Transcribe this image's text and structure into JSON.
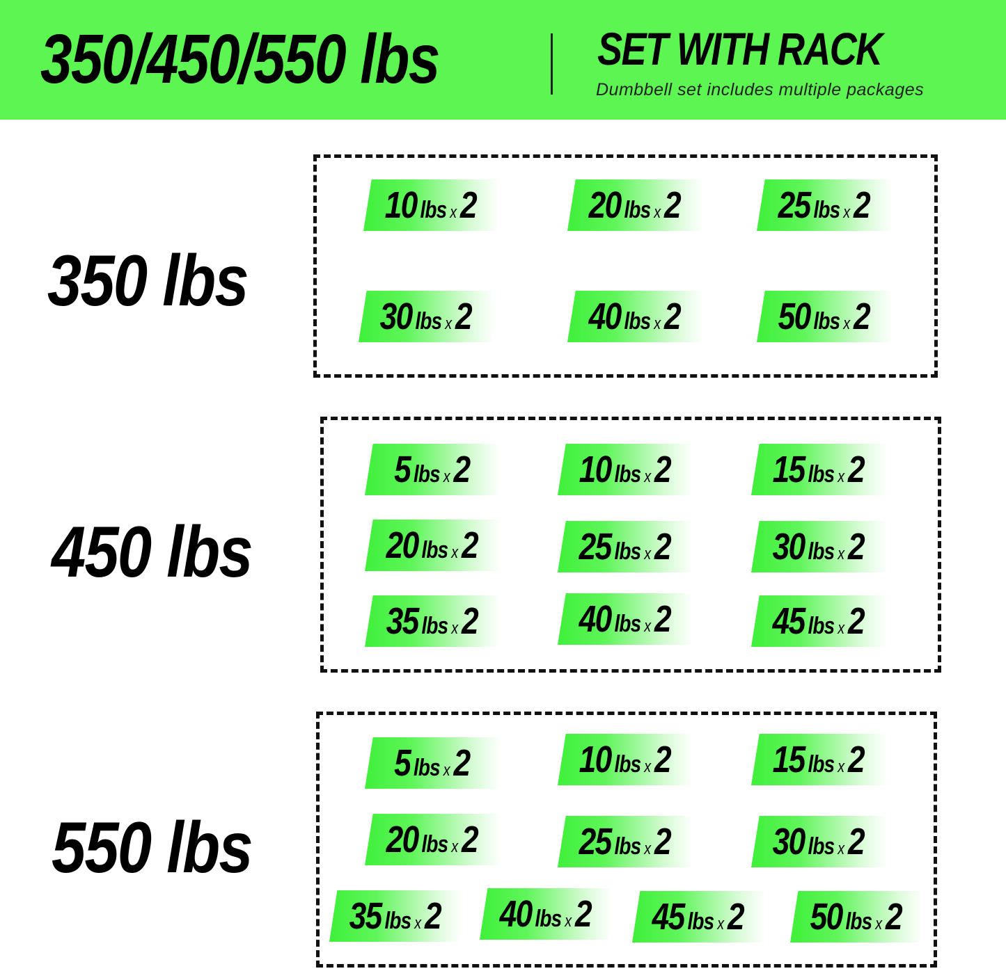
{
  "header": {
    "title": "350/450/550 lbs",
    "subtitle": "SET WITH RACK",
    "description": "Dumbbell set includes multiple packages",
    "background_color": "#5cf552"
  },
  "sets": [
    {
      "label": "350 lbs",
      "items": [
        {
          "weight": "10",
          "unit": "lbs",
          "times": "x",
          "count": "2"
        },
        {
          "weight": "20",
          "unit": "lbs",
          "times": "x",
          "count": "2"
        },
        {
          "weight": "25",
          "unit": "lbs",
          "times": "x",
          "count": "2"
        },
        {
          "weight": "30",
          "unit": "lbs",
          "times": "x",
          "count": "2"
        },
        {
          "weight": "40",
          "unit": "lbs",
          "times": "x",
          "count": "2"
        },
        {
          "weight": "50",
          "unit": "lbs",
          "times": "x",
          "count": "2"
        }
      ]
    },
    {
      "label": "450 lbs",
      "items": [
        {
          "weight": "5",
          "unit": "lbs",
          "times": "x",
          "count": "2"
        },
        {
          "weight": "10",
          "unit": "lbs",
          "times": "x",
          "count": "2"
        },
        {
          "weight": "15",
          "unit": "lbs",
          "times": "x",
          "count": "2"
        },
        {
          "weight": "20",
          "unit": "lbs",
          "times": "x",
          "count": "2"
        },
        {
          "weight": "25",
          "unit": "lbs",
          "times": "x",
          "count": "2"
        },
        {
          "weight": "30",
          "unit": "lbs",
          "times": "x",
          "count": "2"
        },
        {
          "weight": "35",
          "unit": "lbs",
          "times": "x",
          "count": "2"
        },
        {
          "weight": "40",
          "unit": "lbs",
          "times": "x",
          "count": "2"
        },
        {
          "weight": "45",
          "unit": "lbs",
          "times": "x",
          "count": "2"
        }
      ]
    },
    {
      "label": "550 lbs",
      "items": [
        {
          "weight": "5",
          "unit": "lbs",
          "times": "x",
          "count": "2"
        },
        {
          "weight": "10",
          "unit": "lbs",
          "times": "x",
          "count": "2"
        },
        {
          "weight": "15",
          "unit": "lbs",
          "times": "x",
          "count": "2"
        },
        {
          "weight": "20",
          "unit": "lbs",
          "times": "x",
          "count": "2"
        },
        {
          "weight": "25",
          "unit": "lbs",
          "times": "x",
          "count": "2"
        },
        {
          "weight": "30",
          "unit": "lbs",
          "times": "x",
          "count": "2"
        },
        {
          "weight": "35",
          "unit": "lbs",
          "times": "x",
          "count": "2"
        },
        {
          "weight": "40",
          "unit": "lbs",
          "times": "x",
          "count": "2"
        },
        {
          "weight": "45",
          "unit": "lbs",
          "times": "x",
          "count": "2"
        },
        {
          "weight": "50",
          "unit": "lbs",
          "times": "x",
          "count": "2"
        }
      ]
    }
  ]
}
